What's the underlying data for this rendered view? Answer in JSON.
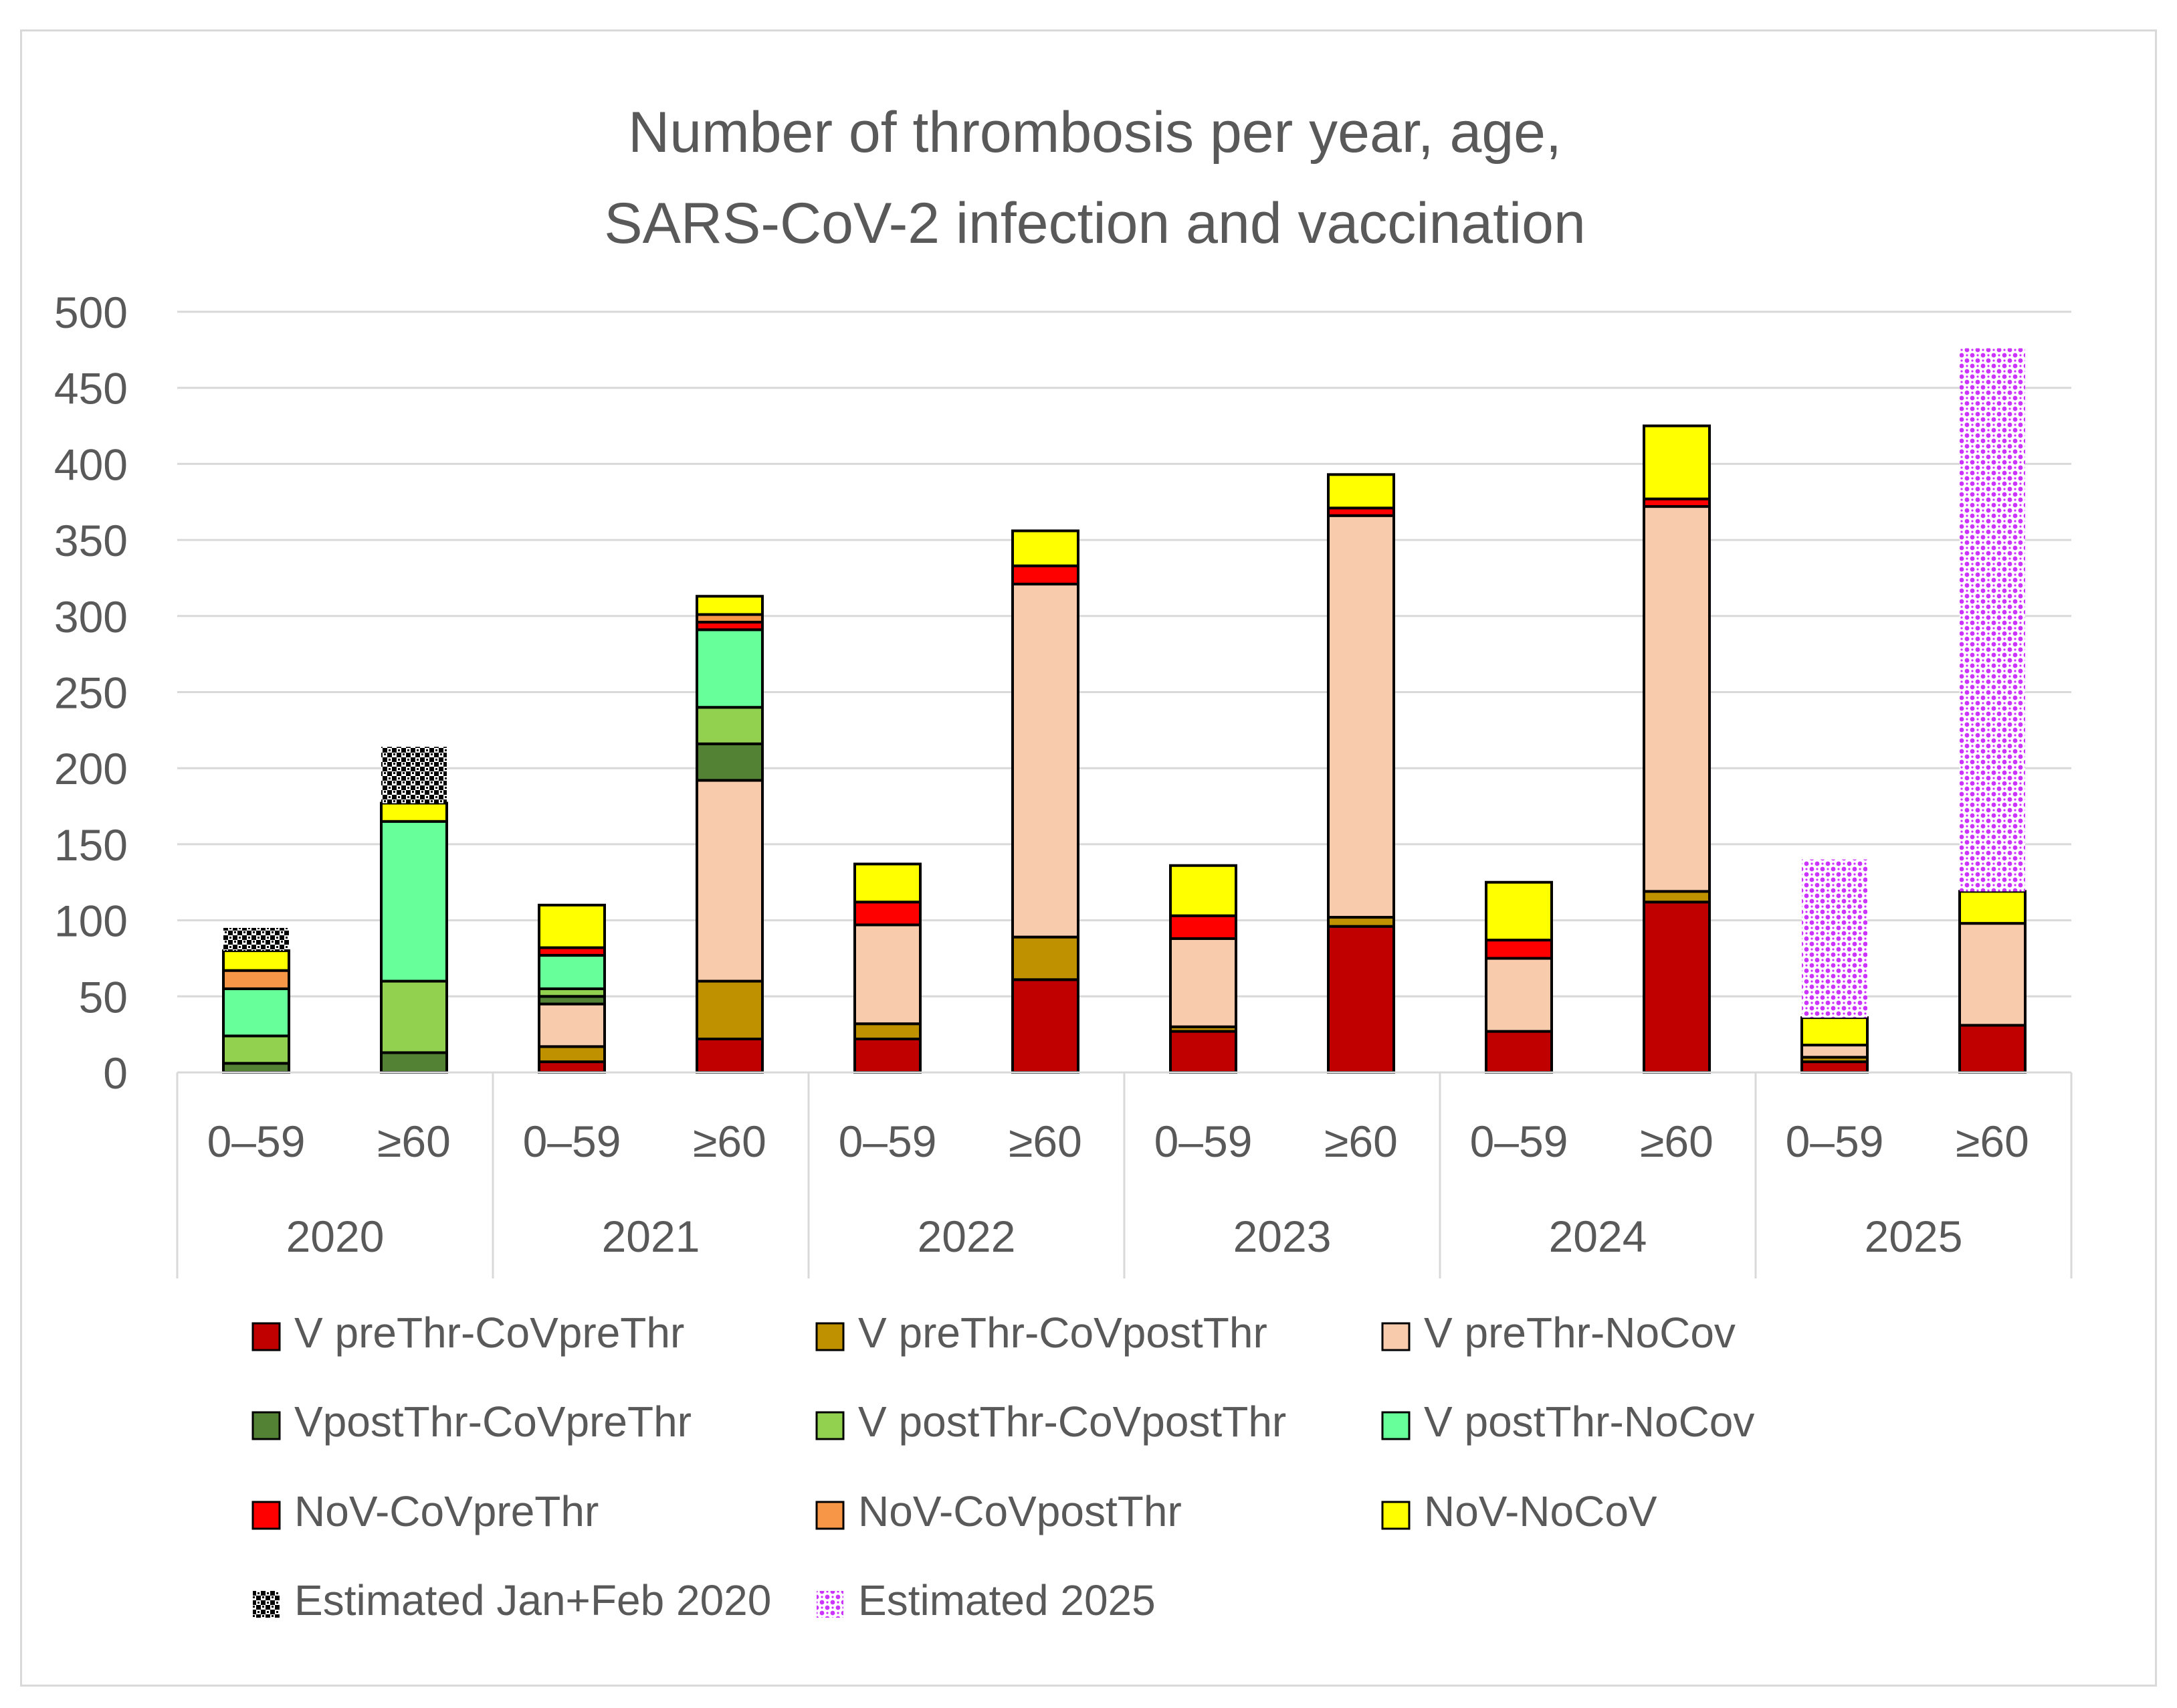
{
  "chart_data": {
    "type": "bar",
    "stacked": true,
    "title": "Number of thrombosis per year, age,",
    "title_line2": "SARS-CoV-2 infection and vaccination",
    "xlabel": "",
    "ylabel": "",
    "ylim": [
      0,
      500
    ],
    "yticks": [
      0,
      50,
      100,
      150,
      200,
      250,
      300,
      350,
      400,
      450,
      500
    ],
    "grid": true,
    "legend_position": "bottom",
    "groups": [
      "2020",
      "2021",
      "2022",
      "2023",
      "2024",
      "2025"
    ],
    "categories": [
      "0–59",
      "≥60",
      "0–59",
      "≥60",
      "0–59",
      "≥60",
      "0–59",
      "≥60",
      "0–59",
      "≥60",
      "0–59",
      "≥60"
    ],
    "series": [
      {
        "name": "V preThr-CoVpreThr",
        "color": "#c00000",
        "pattern": "solid",
        "values": [
          0,
          0,
          7,
          22,
          22,
          61,
          27,
          96,
          27,
          112,
          7,
          31
        ]
      },
      {
        "name": "V preThr-CoVpostThr",
        "color": "#bf9000",
        "pattern": "solid",
        "values": [
          0,
          0,
          10,
          38,
          10,
          28,
          3,
          6,
          0,
          7,
          3,
          0
        ]
      },
      {
        "name": "V preThr-NoCov",
        "color": "#f8cbad",
        "pattern": "solid",
        "values": [
          0,
          0,
          28,
          132,
          65,
          232,
          58,
          264,
          48,
          253,
          8,
          67
        ]
      },
      {
        "name": "VpostThr-CoVpreThr",
        "color": "#548235",
        "pattern": "solid",
        "values": [
          6,
          13,
          5,
          24,
          0,
          0,
          0,
          0,
          0,
          0,
          0,
          0
        ]
      },
      {
        "name": "V postThr-CoVpostThr",
        "color": "#92d050",
        "pattern": "solid",
        "values": [
          18,
          47,
          5,
          24,
          0,
          0,
          0,
          0,
          0,
          0,
          0,
          0
        ]
      },
      {
        "name": "V postThr-NoCov",
        "color": "#66ff99",
        "pattern": "solid",
        "values": [
          31,
          105,
          22,
          51,
          0,
          0,
          0,
          0,
          0,
          0,
          0,
          0
        ]
      },
      {
        "name": "NoV-CoVpreThr",
        "color": "#ff0000",
        "pattern": "solid",
        "values": [
          0,
          0,
          5,
          5,
          15,
          12,
          15,
          5,
          12,
          5,
          0,
          0
        ]
      },
      {
        "name": "NoV-CoVpostThr",
        "color": "#f79646",
        "pattern": "solid",
        "values": [
          12,
          0,
          0,
          5,
          0,
          0,
          0,
          0,
          0,
          0,
          0,
          0
        ]
      },
      {
        "name": "NoV-NoCoV",
        "color": "#ffff00",
        "pattern": "solid",
        "values": [
          13,
          12,
          28,
          12,
          25,
          23,
          33,
          22,
          38,
          48,
          18,
          21
        ]
      },
      {
        "name": "Estimated Jan+Feb 2020",
        "color": "#000000",
        "pattern": "checker",
        "values": [
          15,
          37,
          0,
          0,
          0,
          0,
          0,
          0,
          0,
          0,
          0,
          0
        ]
      },
      {
        "name": "Estimated 2025",
        "color": "#cc33ff",
        "pattern": "dots",
        "values": [
          0,
          0,
          0,
          0,
          0,
          0,
          0,
          0,
          0,
          0,
          104,
          357
        ]
      }
    ]
  }
}
